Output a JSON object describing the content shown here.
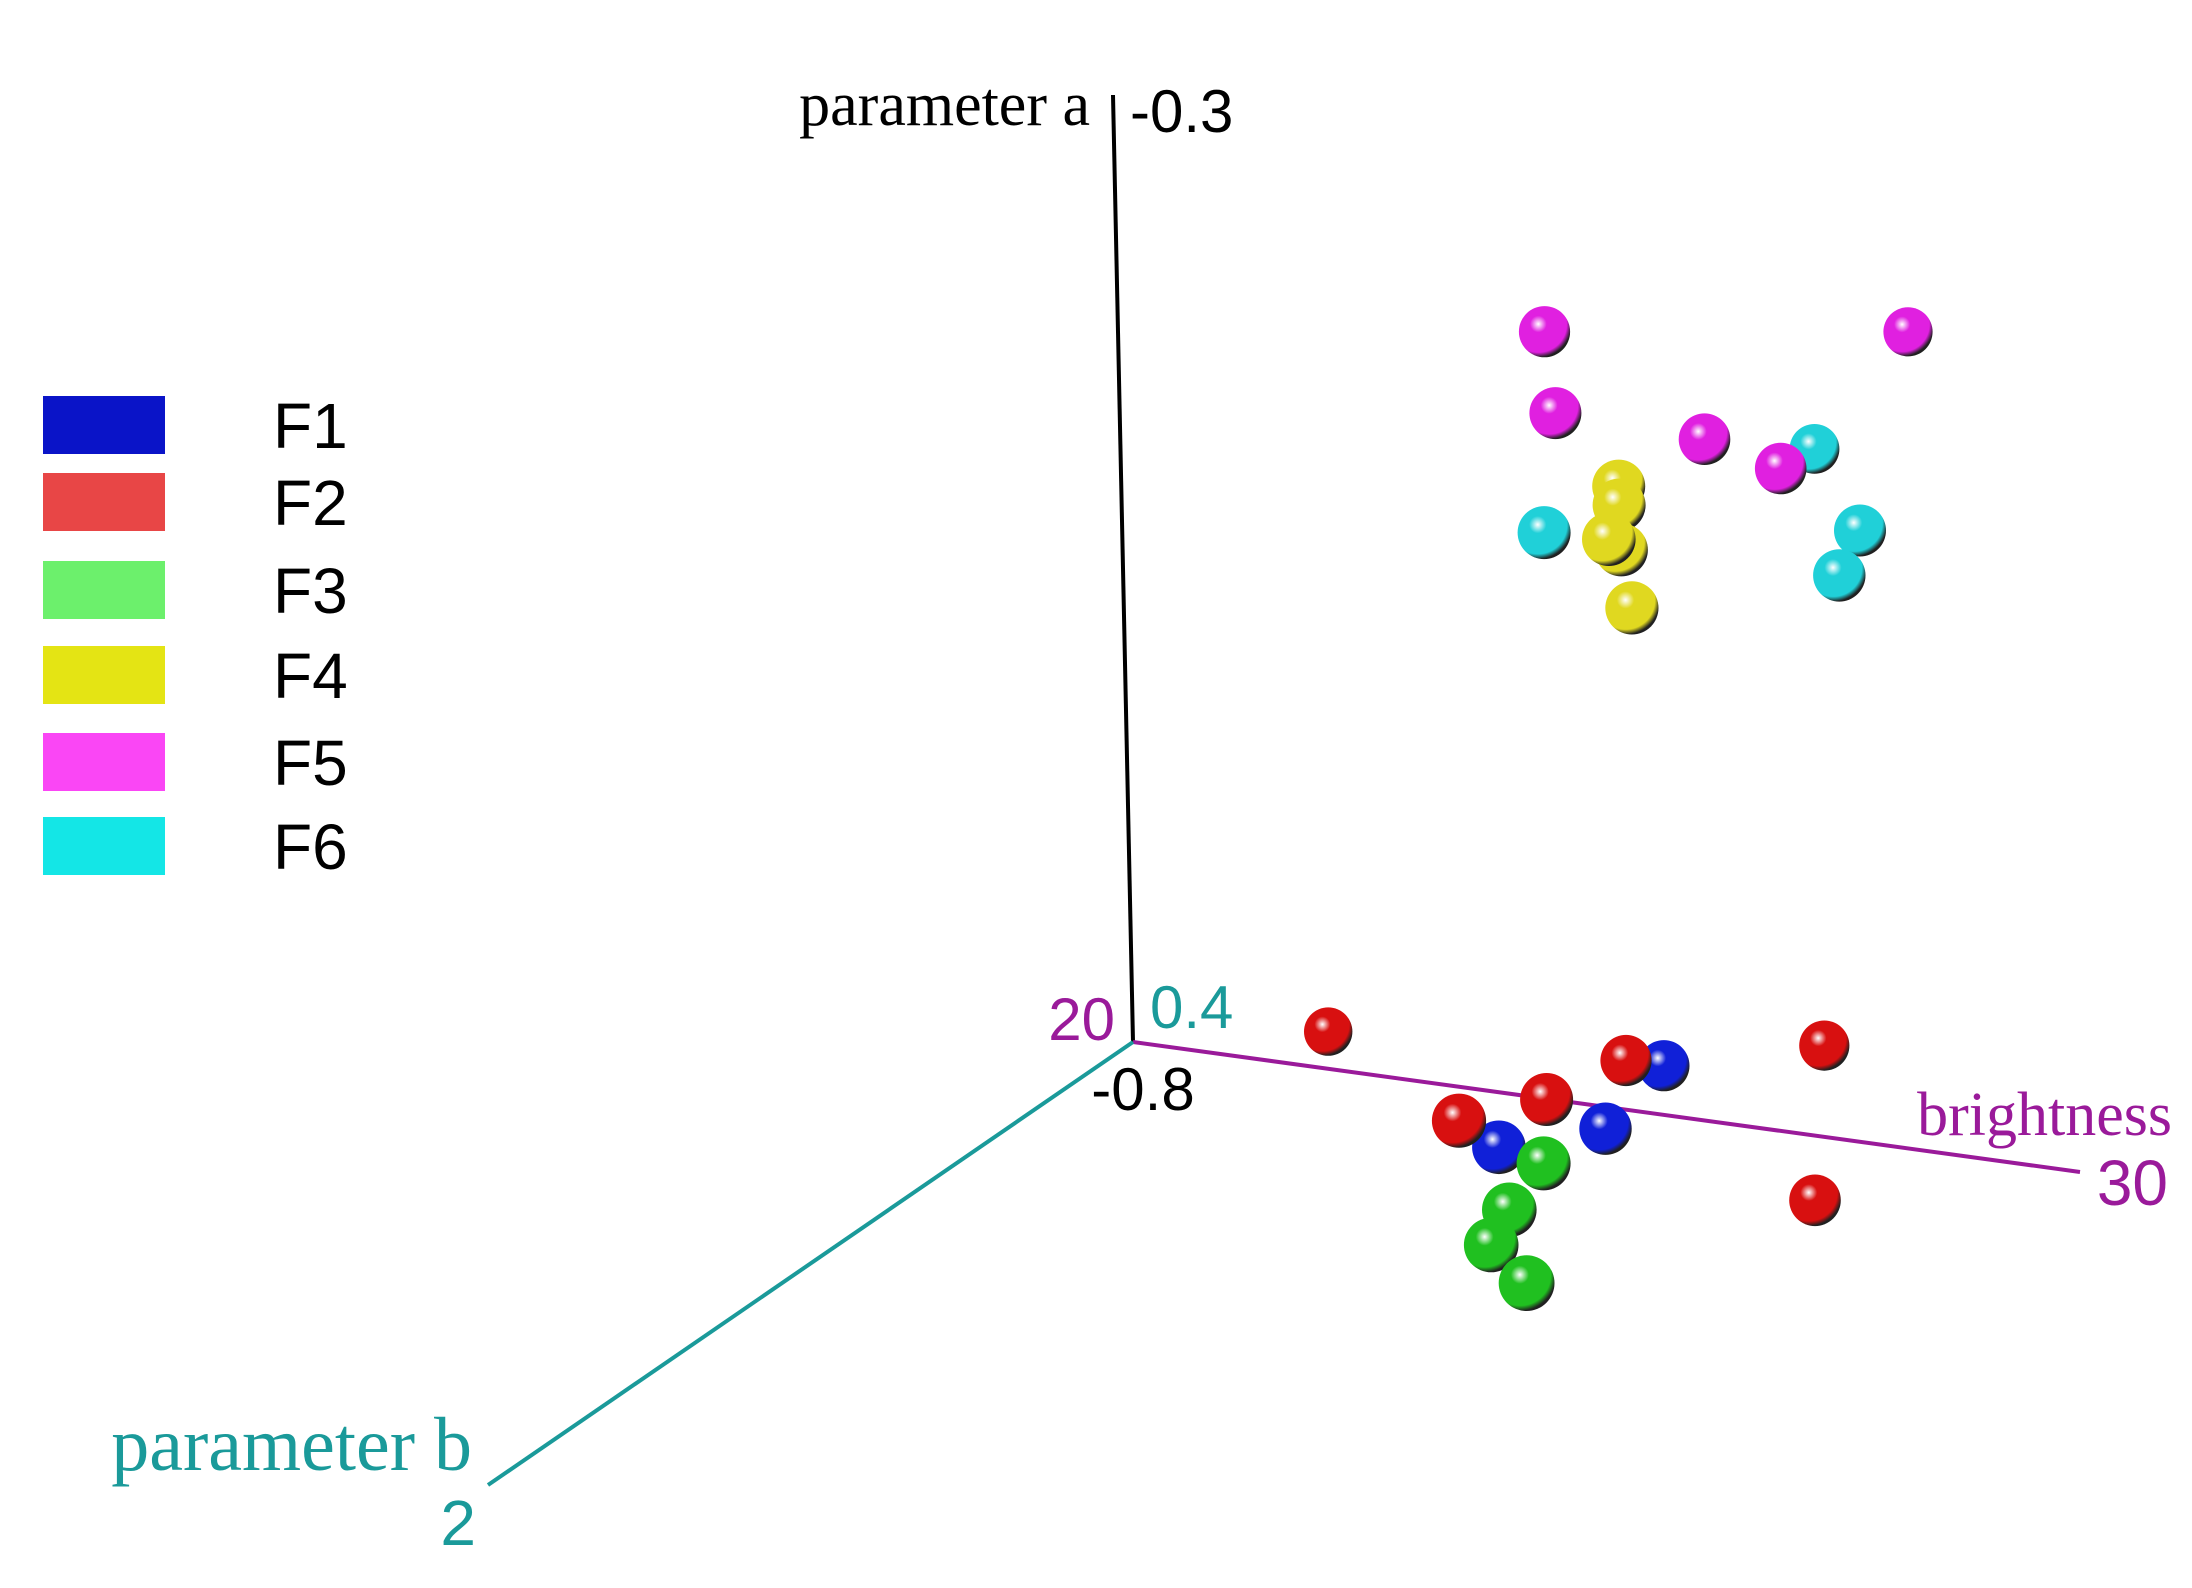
{
  "chart_data": {
    "type": "scatter",
    "projection": "3d",
    "axes": {
      "a": {
        "label": "parameter a",
        "min_label": "-0.8",
        "max_label": "-0.3",
        "range": [
          -0.8,
          -0.3
        ],
        "color": "#000000"
      },
      "b": {
        "label": "parameter b",
        "min_label": "0.4",
        "max_label": "2",
        "range": [
          0.4,
          2
        ],
        "color": "#1a9a9a"
      },
      "brightness": {
        "label": "brightness",
        "min_label": "20",
        "max_label": "30",
        "range": [
          20,
          30
        ],
        "color": "#9a1a9a"
      }
    },
    "legend": {
      "placement": "left",
      "entries": [
        {
          "label": "F1",
          "color": "#0a14c8"
        },
        {
          "label": "F2",
          "color": "#e84646"
        },
        {
          "label": "F3",
          "color": "#6cf06c"
        },
        {
          "label": "F4",
          "color": "#e4e414"
        },
        {
          "label": "F5",
          "color": "#fa46f5"
        },
        {
          "label": "F6",
          "color": "#14e6e6"
        }
      ]
    },
    "series": [
      {
        "name": "F1",
        "color": "#1020d8",
        "points": [
          {
            "brightness": 26.5,
            "a": -0.75,
            "b": 0.75
          },
          {
            "brightness": 26.7,
            "a": -0.73,
            "b": 0.65
          },
          {
            "brightness": 25.8,
            "a": -0.75,
            "b": 0.85
          }
        ]
      },
      {
        "name": "F2",
        "color": "#d81010",
        "points": [
          {
            "brightness": 22.2,
            "a": -0.775,
            "b": 0.43
          },
          {
            "brightness": 26.1,
            "a": -0.73,
            "b": 0.8
          },
          {
            "brightness": 26.3,
            "a": -0.73,
            "b": 0.65
          },
          {
            "brightness": 28.4,
            "a": -0.785,
            "b": 0.68
          },
          {
            "brightness": 28.1,
            "a": -0.72,
            "b": 0.58
          },
          {
            "brightness": 25.6,
            "a": -0.73,
            "b": 0.9
          }
        ]
      },
      {
        "name": "F3",
        "color": "#20c020",
        "points": [
          {
            "brightness": 26.4,
            "a": -0.75,
            "b": 0.88
          },
          {
            "brightness": 26.2,
            "a": -0.77,
            "b": 0.92
          },
          {
            "brightness": 26.8,
            "a": -0.79,
            "b": 1.02
          },
          {
            "brightness": 26.0,
            "a": -0.79,
            "b": 0.92
          }
        ]
      },
      {
        "name": "F4",
        "color": "#e0d820",
        "points": [
          {
            "brightness": 27.0,
            "a": -0.4,
            "b": 0.8
          },
          {
            "brightness": 27.0,
            "a": -0.41,
            "b": 0.8
          },
          {
            "brightness": 27.1,
            "a": -0.42,
            "b": 0.85
          },
          {
            "brightness": 27.1,
            "a": -0.43,
            "b": 0.82
          },
          {
            "brightness": 27.2,
            "a": -0.46,
            "b": 0.82
          }
        ]
      },
      {
        "name": "F5",
        "color": "#e020e0",
        "points": [
          {
            "brightness": 25.6,
            "a": -0.35,
            "b": 0.65
          },
          {
            "brightness": 28.8,
            "a": -0.35,
            "b": 0.5
          },
          {
            "brightness": 26.0,
            "a": -0.38,
            "b": 0.72
          },
          {
            "brightness": 27.4,
            "a": -0.39,
            "b": 0.68
          },
          {
            "brightness": 28.2,
            "a": -0.4,
            "b": 0.68
          }
        ]
      },
      {
        "name": "F6",
        "color": "#20d0d8",
        "points": [
          {
            "brightness": 28.0,
            "a": -0.41,
            "b": 0.55
          },
          {
            "brightness": 26.2,
            "a": -0.43,
            "b": 0.8
          },
          {
            "brightness": 29.2,
            "a": -0.42,
            "b": 0.72
          },
          {
            "brightness": 29.1,
            "a": -0.44,
            "b": 0.75
          }
        ]
      }
    ],
    "grid": false
  }
}
